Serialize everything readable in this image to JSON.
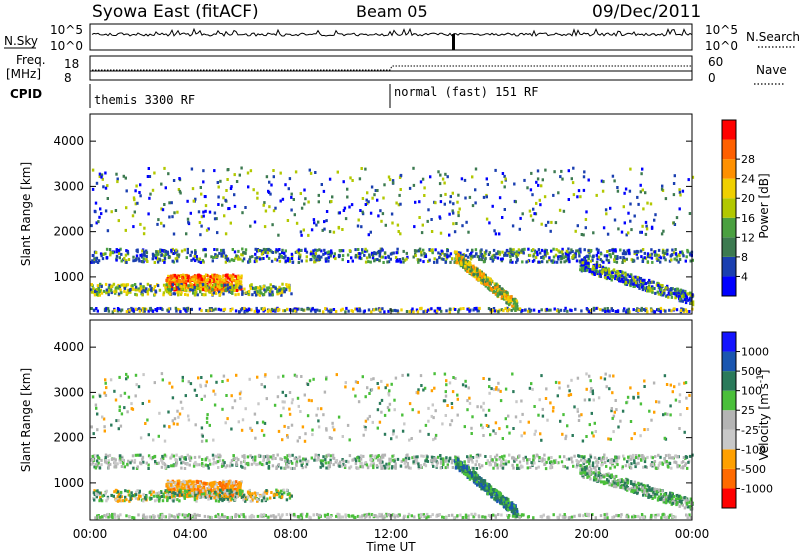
{
  "header": {
    "station": "Syowa East (fitACF)",
    "beam": "Beam 05",
    "date": "09/Dec/2011"
  },
  "summary_panels": {
    "nsky_label": "N.Sky",
    "nsky_ticks": [
      "10^5",
      "10^0"
    ],
    "nsearch_label": "N.Search",
    "nsearch_ticks": [
      "10^5",
      "10^0"
    ],
    "freq_label": "Freq.",
    "freq_unit": "[MHz]",
    "freq_ticks": [
      "18",
      "8"
    ],
    "nave_label": "Nave",
    "nave_ticks": [
      "60",
      "0"
    ],
    "cpid_label": "CPID",
    "cpid_modes": [
      "themis 3300 RF",
      "normal (fast) 151 RF"
    ]
  },
  "colors": {
    "power_scale": [
      "#0000ff",
      "#1a3fb0",
      "#3c7a50",
      "#4aa040",
      "#b2c800",
      "#f0d000",
      "#ff9000",
      "#ff6000",
      "#ff0000"
    ],
    "velocity_scale": [
      "#1414ff",
      "#1a56b0",
      "#2a7a5a",
      "#4abf3a",
      "#b4b4b4",
      "#c8c8c8",
      "#ffa000",
      "#ff6a00",
      "#ff0000"
    ]
  },
  "chart_data": [
    {
      "type": "heatmap",
      "title": "",
      "xlabel": "Time UT",
      "ylabel": "Slant Range [km]",
      "x_range_hours": [
        0,
        24
      ],
      "x_ticks": [
        "00:00",
        "04:00",
        "08:00",
        "12:00",
        "16:00",
        "20:00",
        "00:00"
      ],
      "ylim": [
        180,
        4600
      ],
      "y_ticks": [
        "1000",
        "2000",
        "3000",
        "4000"
      ],
      "y_tick_values": [
        1000,
        2000,
        3000,
        4000
      ],
      "colorbar": {
        "label": "Power [dB]",
        "range": [
          0,
          32
        ],
        "tick_labels": [
          "4",
          "8",
          "12",
          "16",
          "20",
          "24",
          "28"
        ],
        "tick_values": [
          4,
          8,
          12,
          16,
          20,
          24,
          28
        ]
      }
    },
    {
      "type": "heatmap",
      "title": "",
      "xlabel": "Time UT",
      "ylabel": "Slant Range [km]",
      "x_range_hours": [
        0,
        24
      ],
      "x_ticks": [
        "00:00",
        "04:00",
        "08:00",
        "12:00",
        "16:00",
        "20:00",
        "00:00"
      ],
      "ylim": [
        180,
        4600
      ],
      "y_ticks": [
        "1000",
        "2000",
        "3000",
        "4000"
      ],
      "y_tick_values": [
        1000,
        2000,
        3000,
        4000
      ],
      "colorbar": {
        "label": "Velocity [m s",
        "label_superscript": "-1",
        "label_end": "]",
        "tick_labels": [
          "1000",
          "500",
          "100",
          "25",
          "-25",
          "-100",
          "-500",
          "-1000"
        ]
      }
    }
  ]
}
